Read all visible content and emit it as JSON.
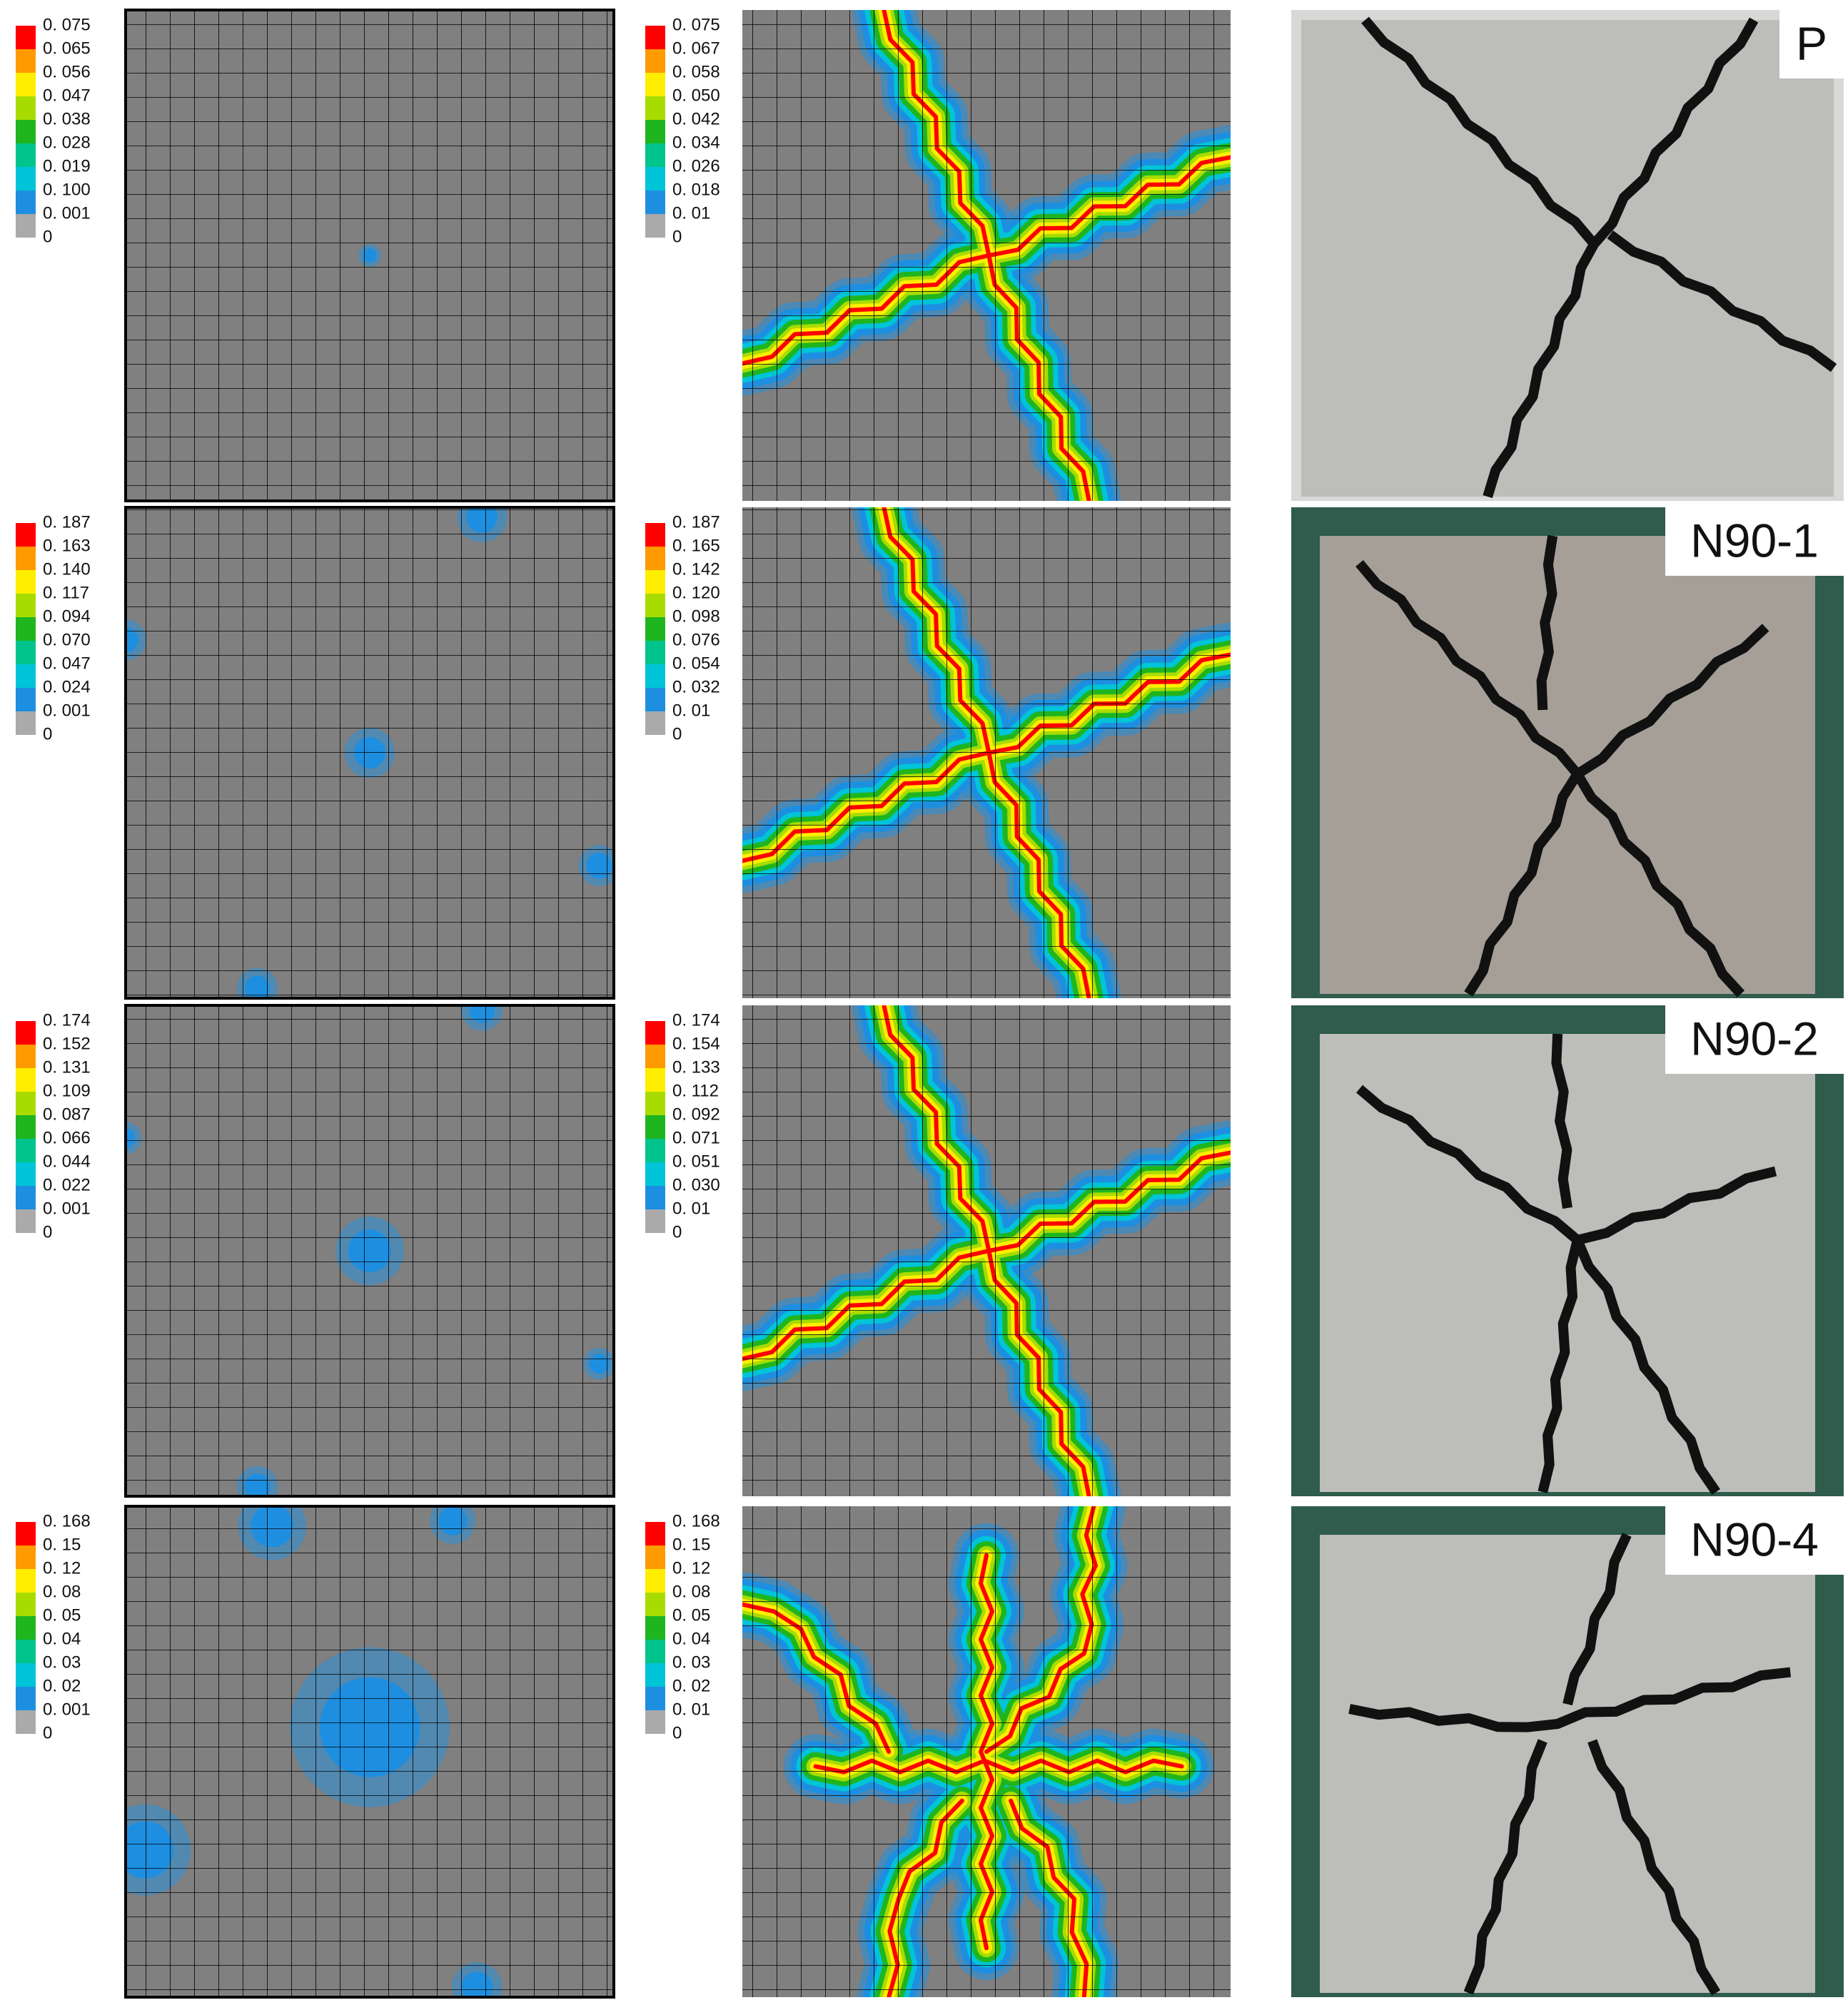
{
  "rows": [
    {
      "legend_left": [
        "0. 075",
        "0. 065",
        "0. 056",
        "0. 047",
        "0. 038",
        "0. 028",
        "0. 019",
        "0. 100",
        "0. 001",
        "0"
      ],
      "legend_right": [
        "0. 075",
        "0. 067",
        "0. 058",
        "0. 050",
        "0. 042",
        "0. 034",
        "0. 026",
        "0. 018",
        "0. 01",
        "0"
      ],
      "photo_label": "P"
    },
    {
      "legend_left": [
        "0. 187",
        "0. 163",
        "0. 140",
        "0. 117",
        "0. 094",
        "0. 070",
        "0. 047",
        "0. 024",
        "0. 001",
        "0"
      ],
      "legend_right": [
        "0. 187",
        "0. 165",
        "0. 142",
        "0. 120",
        "0. 098",
        "0. 076",
        "0. 054",
        "0. 032",
        "0. 01",
        "0"
      ],
      "photo_label": "N90-1"
    },
    {
      "legend_left": [
        "0. 174",
        "0. 152",
        "0. 131",
        "0. 109",
        "0. 087",
        "0. 066",
        "0. 044",
        "0. 022",
        "0. 001",
        "0"
      ],
      "legend_right": [
        "0. 174",
        "0. 154",
        "0. 133",
        "0. 112",
        "0. 092",
        "0. 071",
        "0. 051",
        "0. 030",
        "0. 01",
        "0"
      ],
      "photo_label": "N90-2"
    },
    {
      "legend_left": [
        "0. 168",
        "0. 15",
        "0. 12",
        "0. 08",
        "0. 05",
        "0. 04",
        "0. 03",
        "0. 02",
        "0. 001",
        "0"
      ],
      "legend_right": [
        "0. 168",
        "0. 15",
        "0. 12",
        "0. 08",
        "0. 05",
        "0. 04",
        "0. 03",
        "0. 02",
        "0. 01",
        "0"
      ],
      "photo_label": "N90-4"
    }
  ]
}
